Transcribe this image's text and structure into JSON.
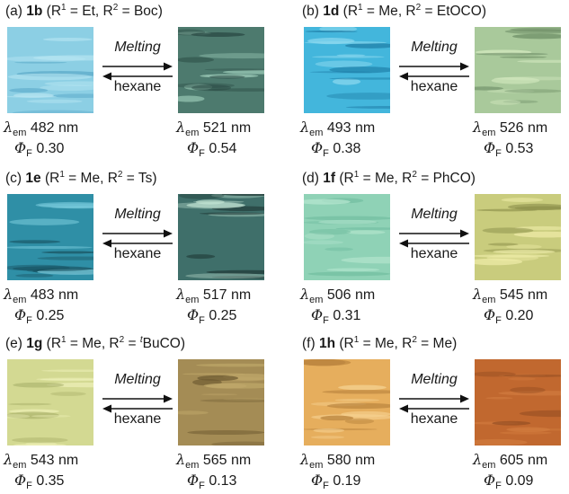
{
  "forward_label": "Melting",
  "reverse_label": "hexane",
  "lambda_symbol": "λ",
  "lambda_sub": "em",
  "phi_symbol": "Φ",
  "phi_sub": "F",
  "panels": [
    {
      "letter": "(a)",
      "compound": "1b",
      "r1": "Et",
      "r2": "Boc",
      "r2_pre_sup": "",
      "left": {
        "em": "482 nm",
        "phi": "0.30",
        "color": "#8ccfe4",
        "color2": "#b8e6f2",
        "color3": "#5aa9c8"
      },
      "right": {
        "em": "521 nm",
        "phi": "0.54",
        "color": "#4d7a6e",
        "color2": "#a9d8c4",
        "color3": "#2a4a44"
      }
    },
    {
      "letter": "(b)",
      "compound": "1d",
      "r1": "Me",
      "r2": "EtOCO",
      "r2_pre_sup": "",
      "left": {
        "em": "493 nm",
        "phi": "0.38",
        "color": "#43b6dc",
        "color2": "#8fdaf0",
        "color3": "#1f7fa8"
      },
      "right": {
        "em": "526 nm",
        "phi": "0.53",
        "color": "#a9c99b",
        "color2": "#d7ecc2",
        "color3": "#6b8b64"
      }
    },
    {
      "letter": "(c)",
      "compound": "1e",
      "r1": "Me",
      "r2": "Ts",
      "r2_pre_sup": "",
      "left": {
        "em": "483 nm",
        "phi": "0.25",
        "color": "#2f8fa6",
        "color2": "#7ecfe0",
        "color3": "#174e5c"
      },
      "right": {
        "em": "517 nm",
        "phi": "0.25",
        "color": "#3f6f6a",
        "color2": "#c6e7d6",
        "color3": "#1d3533"
      }
    },
    {
      "letter": "(d)",
      "compound": "1f",
      "r1": "Me",
      "r2": "PhCO",
      "r2_pre_sup": "",
      "left": {
        "em": "506 nm",
        "phi": "0.31",
        "color": "#8fd2b6",
        "color2": "#b6e6cf",
        "color3": "#6cb99c"
      },
      "right": {
        "em": "545 nm",
        "phi": "0.20",
        "color": "#c9cc7d",
        "color2": "#f0eeaa",
        "color3": "#8c8f4a"
      }
    },
    {
      "letter": "(e)",
      "compound": "1g",
      "r1": "Me",
      "r2": "BuCO",
      "r2_pre_sup": "t",
      "left": {
        "em": "543 nm",
        "phi": "0.35",
        "color": "#d3d992",
        "color2": "#eef0b8",
        "color3": "#a9b06a"
      },
      "right": {
        "em": "565 nm",
        "phi": "0.13",
        "color": "#a48c55",
        "color2": "#c2aa6c",
        "color3": "#6d5a31"
      }
    },
    {
      "letter": "(f)",
      "compound": "1h",
      "r1": "Me",
      "r2": "Me",
      "r2_pre_sup": "",
      "left": {
        "em": "580 nm",
        "phi": "0.19",
        "color": "#e6ae5d",
        "color2": "#f6d393",
        "color3": "#b9833d"
      },
      "right": {
        "em": "605 nm",
        "phi": "0.09",
        "color": "#c1682f",
        "color2": "#d27c3f",
        "color3": "#8f4a20"
      }
    }
  ]
}
